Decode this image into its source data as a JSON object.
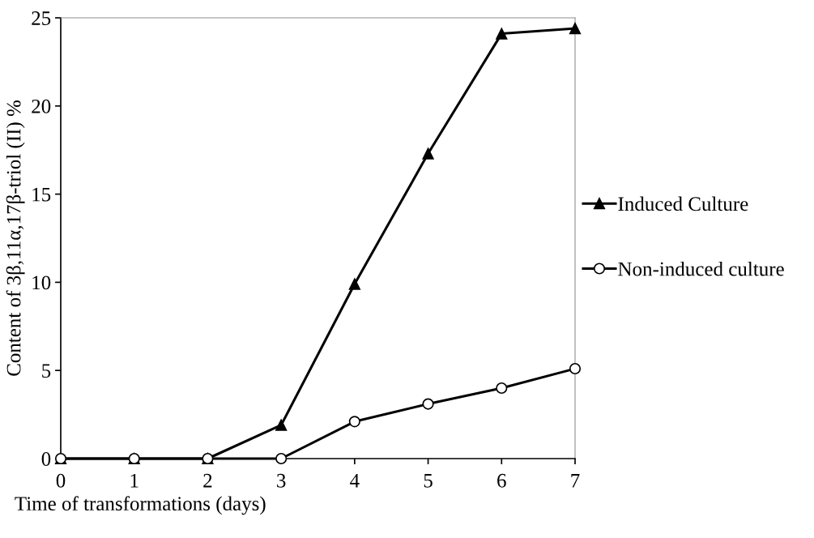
{
  "chart_data": {
    "type": "line",
    "xlabel": "Time of transformations (days)",
    "ylabel": "Content of 3β,11α,17β-triol (II) %",
    "x": [
      0,
      1,
      2,
      3,
      4,
      5,
      6,
      7
    ],
    "series": [
      {
        "name": "Induced Culture",
        "color": "#000000",
        "marker": "triangle",
        "values": [
          0,
          0,
          0,
          1.9,
          9.9,
          17.3,
          24.1,
          24.4
        ]
      },
      {
        "name": "Non-induced culture",
        "color": "#000000",
        "marker": "circle",
        "values": [
          0,
          0,
          0,
          0,
          2.1,
          3.1,
          4.0,
          5.1
        ]
      }
    ],
    "xlim": [
      0,
      7
    ],
    "xticks": [
      0,
      1,
      2,
      3,
      4,
      5,
      6,
      7
    ],
    "ylim": [
      0,
      25
    ],
    "yticks": [
      0,
      5,
      10,
      15,
      20,
      25
    ],
    "grid": false,
    "legend": "right",
    "line_style": "solid"
  }
}
